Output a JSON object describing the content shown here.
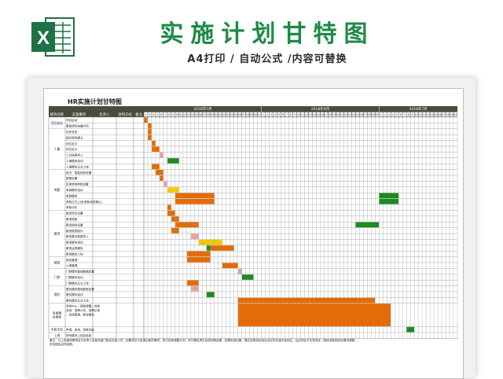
{
  "banner": {
    "title": "实施计划甘特图",
    "subtitle": "A4打印 / 自动公式 /内容可替换"
  },
  "icon": {
    "name": "excel-icon",
    "letter": "X",
    "color": "#1e7145"
  },
  "sheet": {
    "title": "HR实施计划甘特图",
    "headers": [
      "模块名称",
      "实施事项",
      "负责人",
      "甘特方式",
      "备注"
    ],
    "month_labels": [
      "2018年5月",
      "2018年6月",
      "2018年7月"
    ],
    "day_labels_may": [
      "2",
      "3",
      "4",
      "5",
      "6",
      "7",
      "8",
      "9",
      "10",
      "11",
      "12",
      "13",
      "14",
      "15",
      "16",
      "17",
      "18",
      "19",
      "20",
      "21",
      "22",
      "23",
      "24",
      "25",
      "26",
      "27",
      "28",
      "29",
      "30",
      "31"
    ],
    "day_labels_jun": [
      "1",
      "2",
      "3",
      "4",
      "5",
      "6",
      "7",
      "8",
      "9",
      "10",
      "11",
      "12",
      "13",
      "14",
      "15",
      "16",
      "17",
      "18",
      "19",
      "20",
      "21",
      "22",
      "23",
      "24",
      "25",
      "26",
      "27",
      "28",
      "29",
      "30"
    ],
    "day_labels_jul": [
      "1",
      "2",
      "3",
      "4",
      "5",
      "6",
      "7",
      "8",
      "9",
      "10",
      "11",
      "12",
      "13",
      "14",
      "15",
      "16",
      "17",
      "18",
      "19",
      "20"
    ],
    "groups": [
      {
        "name": "项目启动",
        "tasks": [
          "项目启动",
          "基础资料准备时间"
        ]
      },
      {
        "name": "人事",
        "tasks": [
          "初步设定",
          "组织架构建立",
          "岗位定义",
          "岗位定义",
          "人员档案导入",
          "人事模块培训",
          "人事模块正式上线"
        ]
      },
      {
        "name": "考勤",
        "tasks": [
          "班次、智能排班设置",
          "假期设置",
          "异常考勤参数设置",
          "考勤模块培训",
          "考勤模拟",
          "考勤正式上线(考勤状态确认)",
          "考勤分析"
        ]
      },
      {
        "name": "薪资",
        "tasks": [
          "薪资项目设置",
          "薪资账套",
          "薪资规则设置",
          "薪资报表制作",
          "薪资基本数据导入",
          "薪资模块培训",
          "薪资运算模拟",
          "薪资模块上线"
        ]
      },
      {
        "name": "绩效",
        "tasks": [
          "绩效管理",
          "人事管理"
        ]
      },
      {
        "name": "门禁",
        "tasks": [
          "门禁模块基础数据设置",
          "门禁模块培训",
          "门禁模块正式上线"
        ]
      },
      {
        "name": "餐饮",
        "tasks": [
          "餐饮模块基础数据设置",
          "餐饮模块培训",
          "餐饮模块正式上线"
        ]
      },
      {
        "name": "自助端及报表",
        "tasks": [
          "审批中心、智能提醒、自助查询、招聘计划、招聘记录、系统管理、薪资模块"
        ]
      },
      {
        "name": "手机平台",
        "tasks": [
          "申请、查询、审核功能"
        ]
      },
      {
        "name": "上线",
        "tasks": [
          "所有模块上线及验收"
        ]
      }
    ],
    "notes": [
      "备注：以上进度按照项目方负责人及相关部门配合实施人员，如果项目方有提出新的需求，双方协商调整计划；甲方需负责在系统初期设置，如需系统后期，需达到规划标准后对应的实施才能到达，且由项目方负责完成（具体进度视实际情况调整），",
      "的范围自由的延期。"
    ],
    "bar_colors": {
      "main": "#e36c0a",
      "pink": "#e6a0a0",
      "yellow": "#f0c800",
      "green": "#1d8b1d"
    },
    "bars": [
      {
        "row": 1,
        "start": "2018-05-02",
        "end": "2018-05-02",
        "color": "main"
      },
      {
        "row": 2,
        "start": "2018-05-03",
        "end": "2018-05-03",
        "color": "main"
      },
      {
        "row": 3,
        "start": "2018-05-03",
        "end": "2018-05-03",
        "color": "main"
      },
      {
        "row": 4,
        "start": "2018-05-03",
        "end": "2018-05-03",
        "color": "main"
      },
      {
        "row": 5,
        "start": "2018-05-04",
        "end": "2018-05-04",
        "color": "main"
      },
      {
        "row": 6,
        "start": "2018-05-04",
        "end": "2018-05-05",
        "color": "main"
      },
      {
        "row": 7,
        "start": "2018-05-06",
        "end": "2018-05-06",
        "color": "pink"
      },
      {
        "row": 8,
        "start": "2018-05-08",
        "end": "2018-05-10",
        "color": "green"
      },
      {
        "row": 9,
        "start": "2018-05-04",
        "end": "2018-05-05",
        "color": "main"
      },
      {
        "row": 10,
        "start": "2018-05-05",
        "end": "2018-05-06",
        "color": "main"
      },
      {
        "row": 11,
        "start": "2018-05-06",
        "end": "2018-05-06",
        "color": "main"
      },
      {
        "row": 12,
        "start": "2018-05-07",
        "end": "2018-05-07",
        "color": "pink"
      },
      {
        "row": 13,
        "start": "2018-05-08",
        "end": "2018-05-10",
        "color": "yellow"
      },
      {
        "row": 14,
        "start": "2018-05-10",
        "end": "2018-05-19",
        "color": "main"
      },
      {
        "row": 15,
        "start": "2018-05-10",
        "end": "2018-05-19",
        "color": "main"
      },
      {
        "row": 14,
        "start": "2018-07-01",
        "end": "2018-07-05",
        "color": "green"
      },
      {
        "row": 15,
        "start": "2018-07-01",
        "end": "2018-07-05",
        "color": "green"
      },
      {
        "row": 16,
        "start": "2018-05-08",
        "end": "2018-05-08",
        "color": "main"
      },
      {
        "row": 17,
        "start": "2018-05-08",
        "end": "2018-05-09",
        "color": "main"
      },
      {
        "row": 18,
        "start": "2018-05-09",
        "end": "2018-05-10",
        "color": "main"
      },
      {
        "row": 19,
        "start": "2018-05-10",
        "end": "2018-05-15",
        "color": "main"
      },
      {
        "row": 19,
        "start": "2018-06-25",
        "end": "2018-06-30",
        "color": "green"
      },
      {
        "row": 20,
        "start": "2018-05-09",
        "end": "2018-05-10",
        "color": "main"
      },
      {
        "row": 21,
        "start": "2018-05-14",
        "end": "2018-05-15",
        "color": "pink"
      },
      {
        "row": 22,
        "start": "2018-05-16",
        "end": "2018-05-21",
        "color": "yellow"
      },
      {
        "row": 23,
        "start": "2018-05-18",
        "end": "2018-05-18",
        "color": "green"
      },
      {
        "row": 23,
        "start": "2018-05-19",
        "end": "2018-05-24",
        "color": "main"
      },
      {
        "row": 24,
        "start": "2018-05-13",
        "end": "2018-05-18",
        "color": "main"
      },
      {
        "row": 25,
        "start": "2018-05-13",
        "end": "2018-05-18",
        "color": "main"
      },
      {
        "row": 26,
        "start": "2018-05-22",
        "end": "2018-05-25",
        "color": "main"
      },
      {
        "row": 27,
        "start": "2018-05-26",
        "end": "2018-05-26",
        "color": "pink"
      },
      {
        "row": 28,
        "start": "2018-05-27",
        "end": "2018-05-29",
        "color": "green"
      },
      {
        "row": 29,
        "start": "2018-05-13",
        "end": "2018-05-15",
        "color": "main"
      },
      {
        "row": 30,
        "start": "2018-05-14",
        "end": "2018-05-15",
        "color": "pink"
      },
      {
        "row": 31,
        "start": "2018-05-18",
        "end": "2018-05-19",
        "color": "green"
      },
      {
        "row": 32,
        "start": "2018-05-26",
        "end": "2018-06-29",
        "color": "main"
      },
      {
        "row": 33,
        "start": "2018-05-26",
        "end": "2018-07-03",
        "color": "main"
      },
      {
        "row": 34,
        "start": "2018-07-08",
        "end": "2018-07-09",
        "color": "green"
      }
    ]
  }
}
